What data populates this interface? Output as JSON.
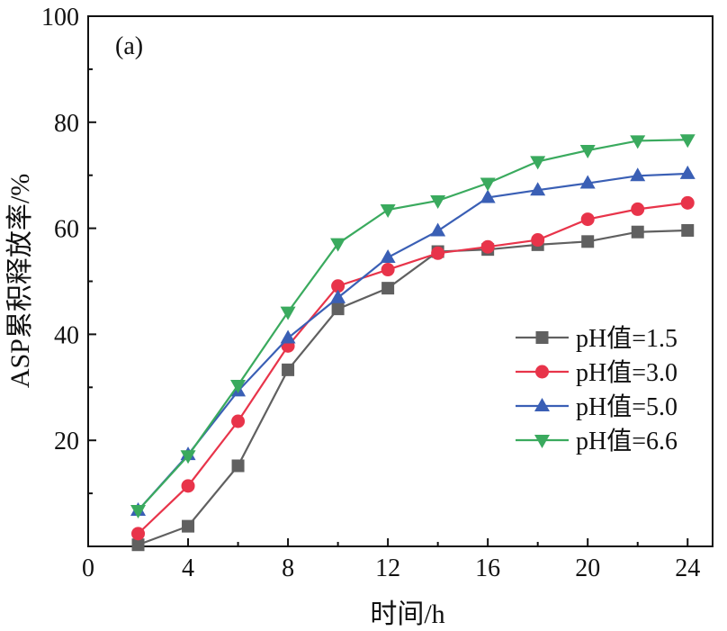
{
  "chart_data": {
    "type": "line",
    "panel_label": "(a)",
    "xlabel": "时间/h",
    "ylabel": "ASP累积释放率/%",
    "xlim": [
      0,
      25
    ],
    "ylim": [
      0,
      100
    ],
    "xticks": [
      0,
      4,
      8,
      12,
      16,
      20,
      24
    ],
    "yticks": [
      20,
      40,
      60,
      80,
      100
    ],
    "x": [
      2,
      4,
      6,
      8,
      10,
      12,
      14,
      16,
      18,
      20,
      22,
      24
    ],
    "legend_position": "center-right",
    "series": [
      {
        "name": "pH值=1.5",
        "marker": "square",
        "color": "#606060",
        "values": [
          0.3,
          3.8,
          15.2,
          33.3,
          44.8,
          48.7,
          55.6,
          56.0,
          56.9,
          57.5,
          59.3,
          59.6
        ]
      },
      {
        "name": "pH值=3.0",
        "marker": "circle",
        "color": "#e8344a",
        "values": [
          2.4,
          11.4,
          23.6,
          37.8,
          49.1,
          52.2,
          55.3,
          56.5,
          57.8,
          61.7,
          63.6,
          64.8
        ]
      },
      {
        "name": "pH值=5.0",
        "marker": "triangle-up",
        "color": "#3a5fb5",
        "values": [
          6.8,
          17.3,
          29.3,
          39.3,
          46.9,
          54.5,
          59.5,
          65.8,
          67.2,
          68.5,
          69.9,
          70.3
        ]
      },
      {
        "name": "pH值=6.6",
        "marker": "triangle-down",
        "color": "#3aaa5e",
        "values": [
          6.8,
          17.1,
          30.4,
          44.2,
          57.1,
          63.5,
          65.2,
          68.5,
          72.6,
          74.7,
          76.5,
          76.7
        ]
      }
    ]
  }
}
